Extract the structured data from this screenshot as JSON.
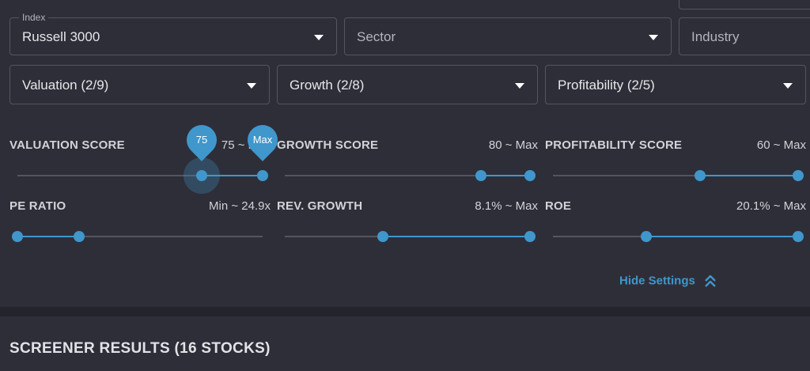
{
  "filters": {
    "index": {
      "label": "Index",
      "value": "Russell 3000"
    },
    "sector": {
      "placeholder": "Sector"
    },
    "industry": {
      "placeholder": "Industry"
    },
    "valuation": {
      "value": "Valuation (2/9)"
    },
    "growth": {
      "value": "Growth (2/8)"
    },
    "profitability": {
      "value": "Profitability (2/5)"
    }
  },
  "sliders": {
    "valuation_score": {
      "title": "VALUATION SCORE",
      "range": "75 ~ Max",
      "bubble_low": "75",
      "bubble_high": "Max",
      "low": 0.75,
      "high": 1.0
    },
    "growth_score": {
      "title": "GROWTH SCORE",
      "range": "80 ~ Max",
      "low": 0.8,
      "high": 1.0
    },
    "profitability_score": {
      "title": "PROFITABILITY SCORE",
      "range": "60 ~ Max",
      "low": 0.6,
      "high": 1.0
    },
    "pe_ratio": {
      "title": "PE RATIO",
      "range": "Min ~ 24.9x",
      "low": 0.0,
      "high": 0.25
    },
    "rev_growth": {
      "title": "REV. GROWTH",
      "range": "8.1% ~ Max",
      "low": 0.4,
      "high": 1.0
    },
    "roe": {
      "title": "ROE",
      "range": "20.1% ~ Max",
      "low": 0.38,
      "high": 1.0
    }
  },
  "hide_settings": {
    "label": "Hide Settings",
    "icon": "double-chevron-up-icon"
  },
  "results": {
    "title": "SCREENER RESULTS  (16 STOCKS)"
  },
  "colors": {
    "accent": "#3f97cc",
    "background": "#2e2e38",
    "divider": "#24242c"
  }
}
